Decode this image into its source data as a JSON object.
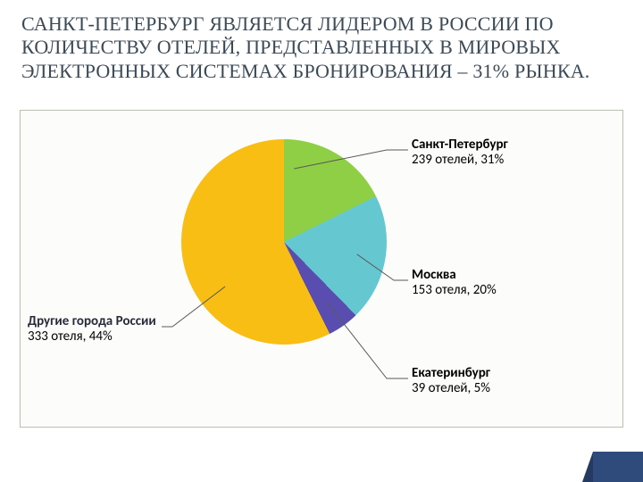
{
  "title": "САНКТ-ПЕТЕРБУРГ ЯВЛЯЕТСЯ ЛИДЕРОМ В РОССИИ ПО КОЛИЧЕСТВУ ОТЕЛЕЙ, ПРЕДСТАВЛЕННЫХ В МИРОВЫХ ЭЛЕКТРОННЫХ СИСТЕМАХ БРОНИРОВАНИЯ – 31% РЫНКА.",
  "chart": {
    "type": "pie",
    "background_color": "#fcfdfa",
    "border_color": "#bac0b0",
    "label_fontsize": 15,
    "label_name_weight": 700,
    "leader_color": "#5a5a5a",
    "slices": [
      {
        "key": "spb",
        "percent": 31,
        "color": "#8fcf46",
        "name": "Санкт-Петербург",
        "value": "239 отелей,  31%",
        "label_color": "#000000"
      },
      {
        "key": "msk",
        "percent": 20,
        "color": "#65c8d1",
        "name": "Москва",
        "value": "153 отеля,  20%",
        "label_color": "#000000"
      },
      {
        "key": "ekb",
        "percent": 5,
        "color": "#5a4db0",
        "name": "Екатеринбург",
        "value": "39 отелей,  5%",
        "label_color": "#000000"
      },
      {
        "key": "other",
        "percent": 44,
        "color": "#f8be14",
        "name": "Другие города России",
        "value": "333 отеля,  44%",
        "label_color": "#262b3a"
      }
    ],
    "start_angle_deg": -48
  },
  "accent_color": "#2e4b7b"
}
